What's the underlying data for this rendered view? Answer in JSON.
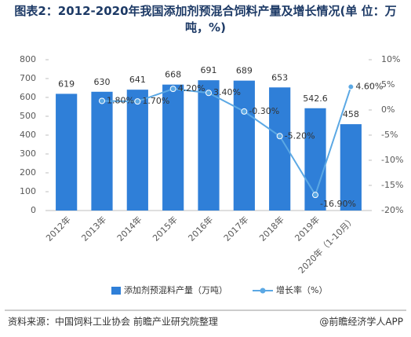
{
  "chart_data": {
    "type": "bar_line",
    "title": "图表2：2012-2020年我国添加剂预混合饲料产量及增长情况(单 位：万吨，%)",
    "categories": [
      "2012年",
      "2013年",
      "2014年",
      "2015年",
      "2016年",
      "2017年",
      "2018年",
      "2019年",
      "2020年（1-10月）"
    ],
    "series": [
      {
        "name": "添加剂预混料产量（万吨）",
        "type": "bar",
        "color": "#2f7fd8",
        "values": [
          619,
          630,
          641,
          668,
          691,
          689,
          653,
          542.6,
          458
        ]
      },
      {
        "name": "增长率（%）",
        "type": "line",
        "axis": "y2",
        "color": "#5ba8e4",
        "values": [
          null,
          1.8,
          1.7,
          4.2,
          3.4,
          -0.3,
          -5.2,
          -16.9,
          4.6
        ],
        "value_labels": [
          null,
          "1.80%",
          "1.70%",
          "4.20%",
          "3.40%",
          "-0.30%",
          "-5.20%",
          "-16.90%",
          "4.60%"
        ]
      }
    ],
    "ylim": [
      0,
      800
    ],
    "yticks": [
      0,
      100,
      200,
      300,
      400,
      500,
      600,
      700,
      800
    ],
    "y2lim": [
      -20,
      10
    ],
    "y2ticks": [
      {
        "value": -20,
        "label": "-20%"
      },
      {
        "value": -15,
        "label": "-15%"
      },
      {
        "value": -10,
        "label": "-10%"
      },
      {
        "value": -5,
        "label": "-5%"
      },
      {
        "value": 0,
        "label": "0%"
      },
      {
        "value": 5,
        "label": "5%"
      },
      {
        "value": 10,
        "label": "10%"
      }
    ],
    "legend": "bottom",
    "source": "资料来源：中国饲料工业协会 前瞻产业研究院整理",
    "credit": "@前瞻经济学人APP"
  }
}
